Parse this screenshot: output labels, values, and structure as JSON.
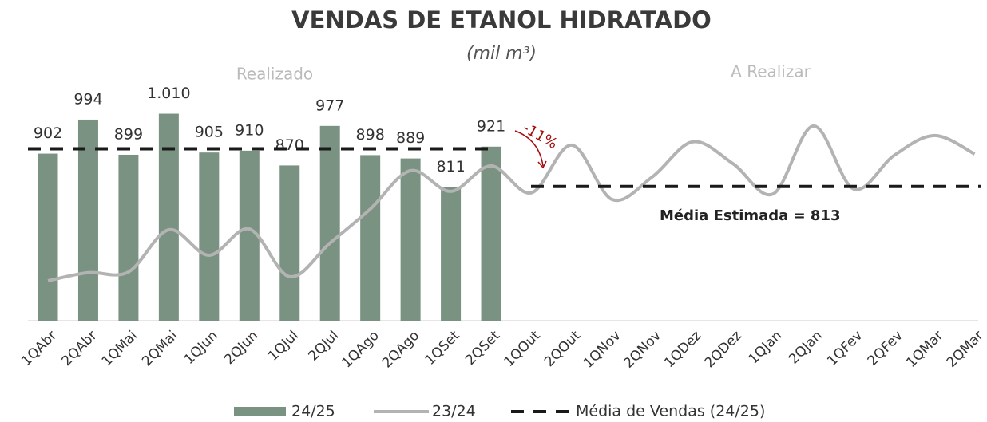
{
  "chart_data": {
    "type": "bar",
    "title": "VENDAS DE ETANOL HIDRATADO",
    "subtitle": "(mil m³)",
    "annotations": {
      "left": "Realizado",
      "right": "A Realizar",
      "change": "-11%"
    },
    "categories": [
      "1QAbr",
      "2QAbr",
      "1QMai",
      "2QMai",
      "1QJun",
      "2QJun",
      "1QJul",
      "2QJul",
      "1QAgo",
      "2QAgo",
      "1QSet",
      "2QSet",
      "1QOut",
      "2QOut",
      "1QNov",
      "2QNov",
      "1QDez",
      "2QDez",
      "1QJan",
      "2QJan",
      "1QFev",
      "2QFev",
      "1QMar",
      "2QMar"
    ],
    "series": [
      {
        "name": "24/25",
        "type": "bar",
        "color": "#7a9282",
        "values": [
          902,
          994,
          899,
          1010,
          905,
          910,
          870,
          977,
          898,
          889,
          811,
          921,
          null,
          null,
          null,
          null,
          null,
          null,
          null,
          null,
          null,
          null,
          null,
          null
        ],
        "value_labels": [
          "902",
          "994",
          "899",
          "1.010",
          "905",
          "910",
          "870",
          "977",
          "898",
          "889",
          "811",
          "921",
          null,
          null,
          null,
          null,
          null,
          null,
          null,
          null,
          null,
          null,
          null,
          null
        ]
      },
      {
        "name": "23/24",
        "type": "line",
        "color": "#b3b3b3",
        "values": [
          558,
          580,
          582,
          696,
          627,
          698,
          569,
          660,
          752,
          856,
          800,
          869,
          796,
          925,
          778,
          839,
          934,
          875,
          793,
          977,
          806,
          897,
          951,
          901
        ]
      }
    ],
    "mean": {
      "name": "Média de Vendas (24/25)",
      "color": "#1a1a1a",
      "value": 915
    },
    "estimated_mean": {
      "value": 813,
      "label": "Média Estimada = 813"
    },
    "ylim": [
      450,
      1050
    ]
  }
}
